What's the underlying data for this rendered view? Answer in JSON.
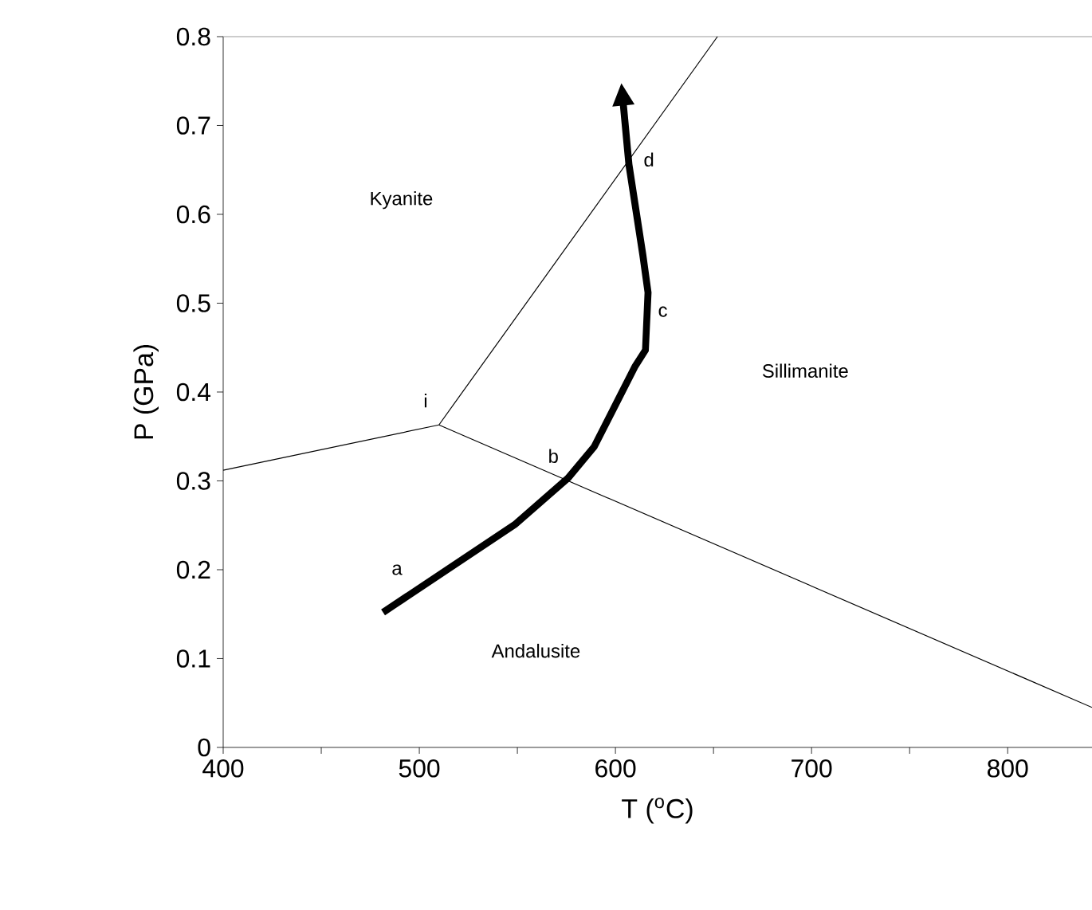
{
  "chart_data": {
    "type": "line",
    "xlabel": "T ($^{o}$C)",
    "ylabel": "P (GPa)",
    "xlim": [
      400,
      843
    ],
    "ylim": [
      0,
      0.8
    ],
    "xticks": [
      400,
      {
        "value": 450,
        "label": null
      },
      500,
      {
        "value": 550,
        "label": null
      },
      600,
      {
        "value": 650,
        "label": null
      },
      700,
      {
        "value": 750,
        "label": null
      },
      800
    ],
    "yticks": [
      0,
      0.1,
      0.2,
      0.3,
      0.4,
      0.5,
      0.6,
      0.7,
      0.8
    ],
    "grid": false,
    "marker": "none",
    "series": [
      {
        "color": "#000000",
        "x": [
          400,
          510
        ],
        "values": [
          0.312,
          0.363
        ]
      },
      {
        "color": "#000000",
        "x": [
          510,
          843
        ],
        "values": [
          0.363,
          0.045
        ]
      },
      {
        "color": "#000000",
        "x": [
          510,
          652
        ],
        "values": [
          0.363,
          0.8
        ]
      }
    ],
    "annotations": [
      "Kyanite",
      "Sillimanite",
      "Andalusite",
      "a",
      "b",
      "c",
      "d",
      "i"
    ]
  }
}
